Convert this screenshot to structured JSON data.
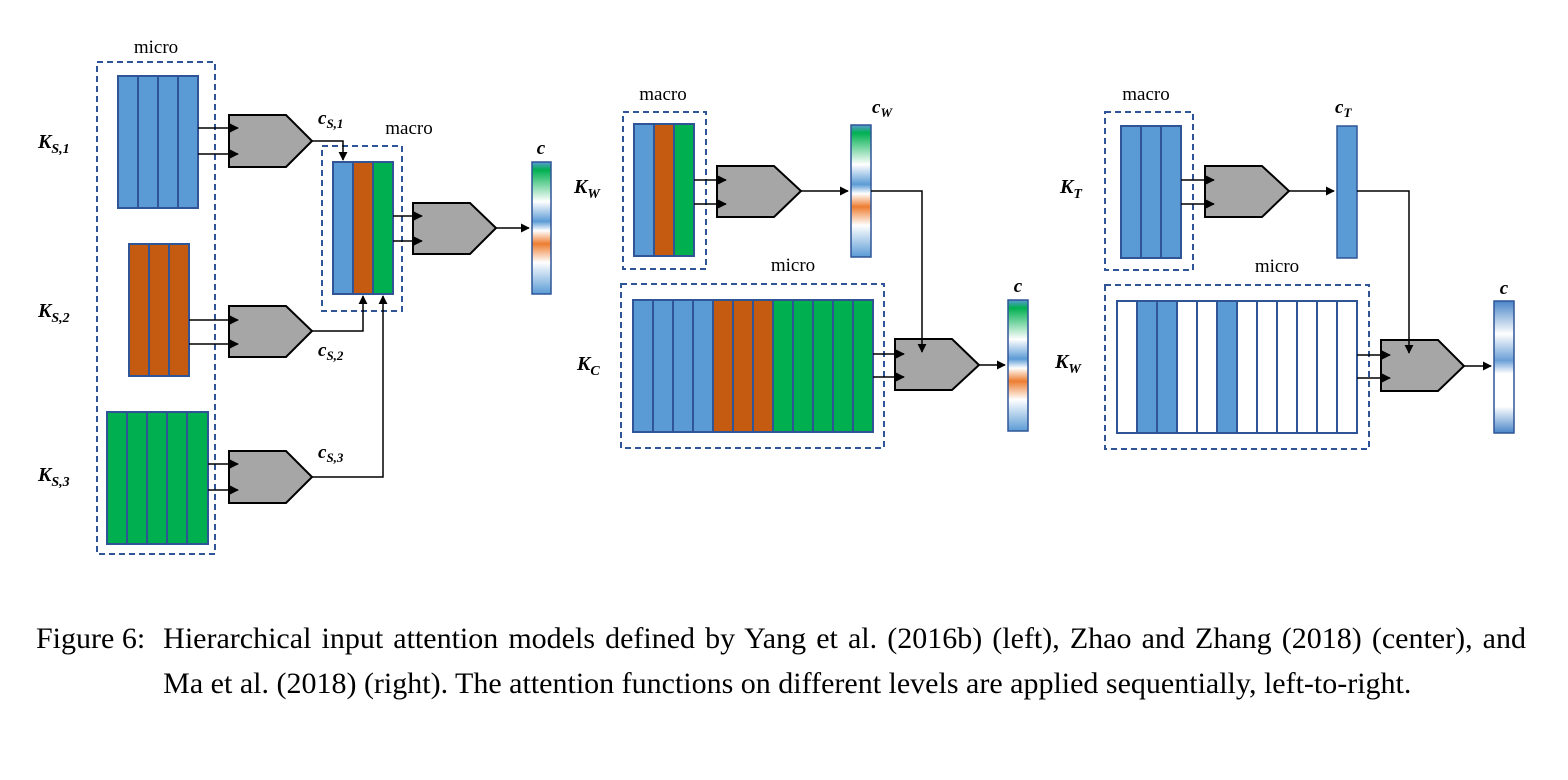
{
  "colors": {
    "blue": "#5b9bd5",
    "orange": "#c55a11",
    "green": "#00b050",
    "gray": "#a6a6a6",
    "frame": "#2f5597"
  },
  "left": {
    "micro_label": "micro",
    "macro_label": "macro",
    "keys": [
      {
        "base": "K",
        "sub": "S,1"
      },
      {
        "base": "K",
        "sub": "S,2"
      },
      {
        "base": "K",
        "sub": "S,3"
      }
    ],
    "contexts": [
      {
        "base": "c",
        "sub": "S,1"
      },
      {
        "base": "c",
        "sub": "S,2"
      },
      {
        "base": "c",
        "sub": "S,3"
      }
    ],
    "output_label": "c"
  },
  "center": {
    "macro_label": "macro",
    "micro_label": "micro",
    "key_macro": {
      "base": "K",
      "sub": "W"
    },
    "key_micro": {
      "base": "K",
      "sub": "C"
    },
    "context": {
      "base": "c",
      "sub": "W"
    },
    "output_label": "c"
  },
  "right": {
    "macro_label": "macro",
    "micro_label": "micro",
    "key_macro": {
      "base": "K",
      "sub": "T"
    },
    "key_micro": {
      "base": "K",
      "sub": "W"
    },
    "context": {
      "base": "c",
      "sub": "T"
    },
    "output_label": "c"
  },
  "caption": {
    "figure_label": "Figure 6:",
    "text": "Hierarchical input attention models defined by Yang et al. (2016b) (left), Zhao and Zhang (2018) (center), and Ma et al. (2018) (right). The attention functions on different levels are applied sequentially, left-to-right."
  }
}
